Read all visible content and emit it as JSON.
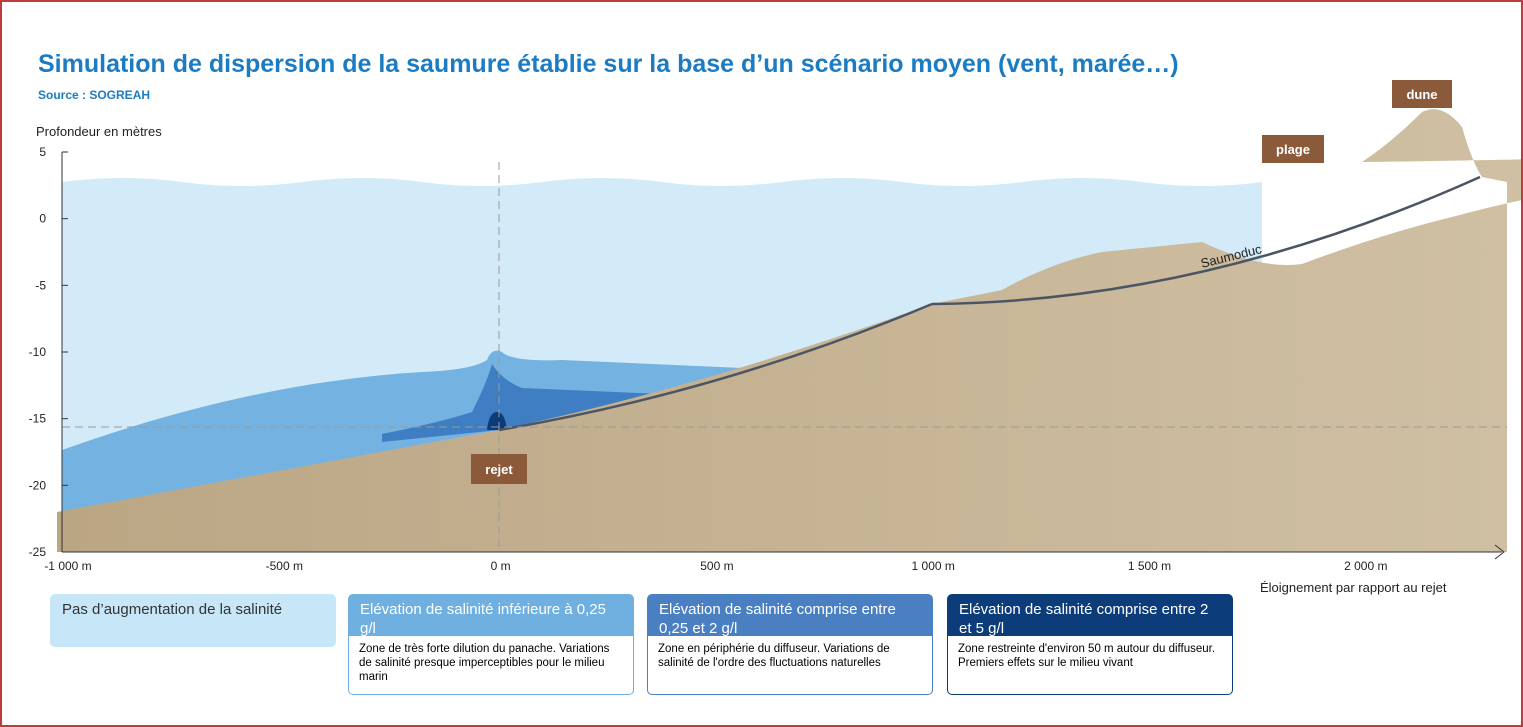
{
  "header": {
    "title": "Simulation de dispersion de la saumure établie sur la base d’un scénario moyen (vent, marée…)",
    "source": "Source : SOGREAH"
  },
  "y_axis": {
    "label": "Profondeur en mètres",
    "ticks": [
      5,
      0,
      -5,
      -10,
      -15,
      -20,
      -25
    ]
  },
  "x_axis": {
    "label": "Éloignement par rapport au rejet",
    "ticks": [
      "-1 000 m",
      "-500 m",
      "0 m",
      "500 m",
      "1 000 m",
      "1 500 m",
      "2 000 m"
    ]
  },
  "labels": {
    "dune": "dune",
    "plage": "plage",
    "rejet": "rejet",
    "pipe": "Saumoduc"
  },
  "legend": [
    {
      "title": "Pas d’augmentation de la salinité"
    },
    {
      "title": "Elévation de salinité inférieure à 0,25 g/l",
      "text": "Zone de très forte dilution du panache. Variations de salinité presque imperceptibles pour le milieu marin"
    },
    {
      "title": "Elévation de salinité comprise entre 0,25 et 2 g/l",
      "text": "Zone en périphérie du diffuseur. Variations de salinité de l'ordre des fluctuations naturelles"
    },
    {
      "title": "Elévation de salinité comprise entre 2 et 5 g/l",
      "text": "Zone restreinte d'environ 50 m autour du diffuseur. Premiers effets sur le milieu vivant"
    }
  ]
}
